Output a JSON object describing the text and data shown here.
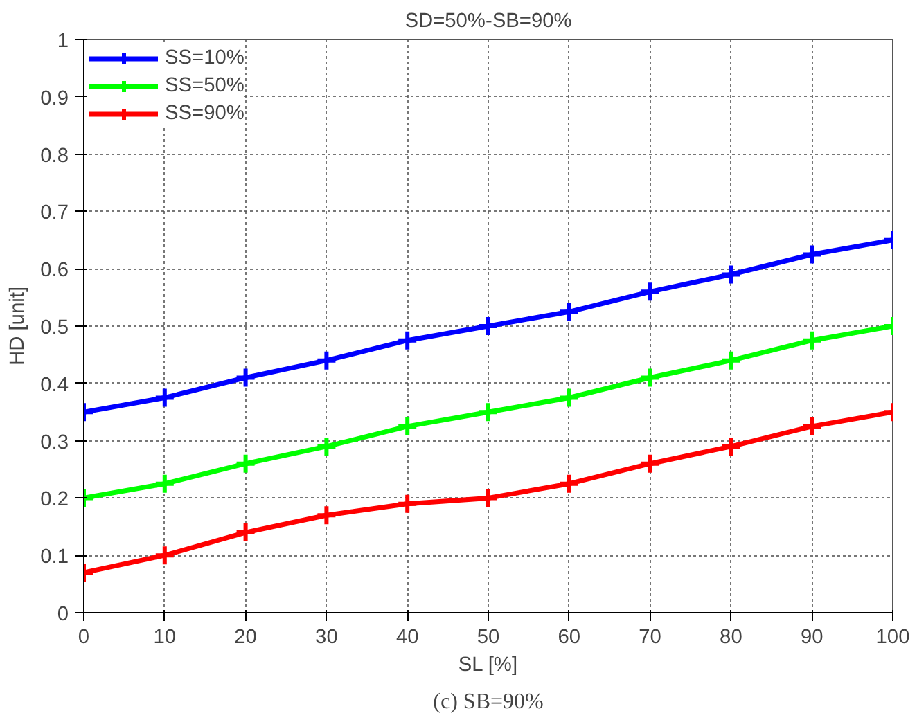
{
  "chart_data": {
    "type": "line",
    "title": "SD=50%-SB=90%",
    "xlabel": "SL [%]",
    "ylabel": "HD [unit]",
    "annotations": [
      "(c) SB=90%"
    ],
    "x": [
      0,
      10,
      20,
      30,
      40,
      50,
      60,
      70,
      80,
      90,
      100
    ],
    "series": [
      {
        "name": "SS=10%",
        "color": "#0000ff",
        "values": [
          0.35,
          0.375,
          0.41,
          0.44,
          0.475,
          0.5,
          0.525,
          0.56,
          0.59,
          0.625,
          0.65
        ]
      },
      {
        "name": "SS=50%",
        "color": "#00ff00",
        "values": [
          0.2,
          0.225,
          0.26,
          0.29,
          0.325,
          0.35,
          0.375,
          0.41,
          0.44,
          0.475,
          0.5
        ]
      },
      {
        "name": "SS=90%",
        "color": "#ff0000",
        "values": [
          0.07,
          0.1,
          0.14,
          0.17,
          0.19,
          0.2,
          0.225,
          0.26,
          0.29,
          0.325,
          0.35
        ]
      }
    ],
    "xlim": [
      0,
      100
    ],
    "xticks": [
      0,
      10,
      20,
      30,
      40,
      50,
      60,
      70,
      80,
      90,
      100
    ],
    "ylim": [
      0,
      1
    ],
    "yticks": [
      0,
      0.1,
      0.2,
      0.3,
      0.4,
      0.5,
      0.6,
      0.7,
      0.8,
      0.9,
      1
    ],
    "grid": true,
    "legend": "top left",
    "marker": "cross",
    "line_style": "solid"
  }
}
